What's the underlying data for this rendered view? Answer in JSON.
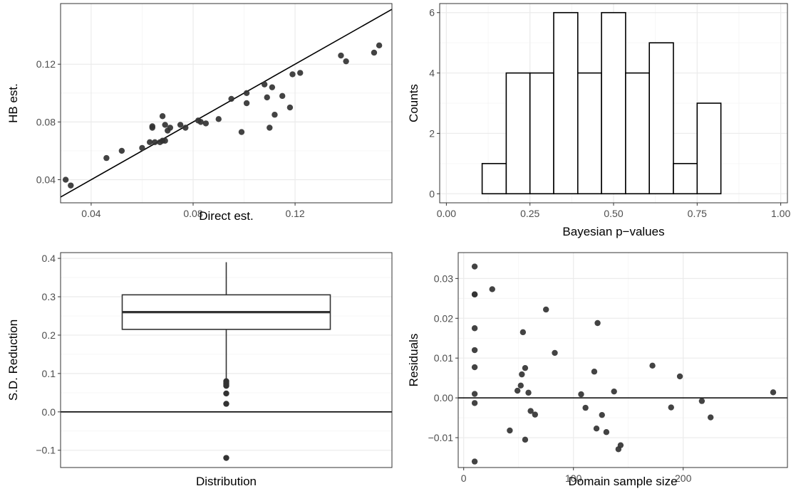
{
  "colors": {
    "point": "#333333",
    "line": "#000000",
    "grid_major": "#ebebeb",
    "grid_minor": "#f4f4f4",
    "frame": "#333333",
    "tick_text": "#4d4d4d"
  },
  "chart_data": [
    {
      "id": "scatter_hb",
      "type": "scatter",
      "xlabel": "Direct est.",
      "ylabel": "HB est.",
      "xlim": [
        0.028,
        0.158
      ],
      "ylim": [
        0.024,
        0.162
      ],
      "xticks": [
        0.04,
        0.08,
        0.12
      ],
      "xtick_labels": [
        "0.04",
        "0.08",
        "0.12"
      ],
      "yticks": [
        0.04,
        0.08,
        0.12
      ],
      "ytick_labels": [
        "0.04",
        "0.08",
        "0.12"
      ],
      "reference_line": "y = x",
      "points": [
        [
          0.03,
          0.04
        ],
        [
          0.032,
          0.036
        ],
        [
          0.046,
          0.055
        ],
        [
          0.052,
          0.06
        ],
        [
          0.06,
          0.062
        ],
        [
          0.063,
          0.066
        ],
        [
          0.064,
          0.076
        ],
        [
          0.064,
          0.077
        ],
        [
          0.065,
          0.066
        ],
        [
          0.067,
          0.066
        ],
        [
          0.068,
          0.067
        ],
        [
          0.068,
          0.084
        ],
        [
          0.069,
          0.067
        ],
        [
          0.069,
          0.078
        ],
        [
          0.07,
          0.074
        ],
        [
          0.071,
          0.076
        ],
        [
          0.075,
          0.078
        ],
        [
          0.077,
          0.076
        ],
        [
          0.082,
          0.081
        ],
        [
          0.083,
          0.08
        ],
        [
          0.085,
          0.079
        ],
        [
          0.09,
          0.082
        ],
        [
          0.095,
          0.096
        ],
        [
          0.099,
          0.073
        ],
        [
          0.101,
          0.1
        ],
        [
          0.101,
          0.093
        ],
        [
          0.108,
          0.106
        ],
        [
          0.109,
          0.097
        ],
        [
          0.11,
          0.076
        ],
        [
          0.111,
          0.104
        ],
        [
          0.112,
          0.085
        ],
        [
          0.115,
          0.098
        ],
        [
          0.118,
          0.09
        ],
        [
          0.119,
          0.113
        ],
        [
          0.122,
          0.114
        ],
        [
          0.138,
          0.126
        ],
        [
          0.14,
          0.122
        ],
        [
          0.151,
          0.128
        ],
        [
          0.153,
          0.133
        ]
      ]
    },
    {
      "id": "histogram_pvalues",
      "type": "bar",
      "xlabel": "Bayesian p−values",
      "ylabel": "Counts",
      "xlim": [
        -0.02,
        1.02
      ],
      "ylim": [
        -0.3,
        6.3
      ],
      "xticks": [
        0.0,
        0.25,
        0.5,
        0.75,
        1.0
      ],
      "xtick_labels": [
        "0.00",
        "0.25",
        "0.50",
        "0.75",
        "1.00"
      ],
      "yticks": [
        0,
        2,
        4,
        6
      ],
      "ytick_labels": [
        "0",
        "2",
        "4",
        "6"
      ],
      "bin_edges": [
        0.036,
        0.107,
        0.179,
        0.25,
        0.321,
        0.393,
        0.464,
        0.536,
        0.607,
        0.679,
        0.75,
        0.821,
        0.893,
        0.964
      ],
      "counts": [
        0,
        1,
        4,
        4,
        6,
        4,
        6,
        4,
        5,
        1,
        3,
        0,
        0
      ]
    },
    {
      "id": "boxplot_sd",
      "type": "box",
      "xlabel": "Distribution",
      "ylabel": "S.D. Reduction",
      "ylim": [
        -0.145,
        0.415
      ],
      "yticks": [
        -0.1,
        0.0,
        0.1,
        0.2,
        0.3,
        0.4
      ],
      "ytick_labels": [
        "−0.1",
        "0.0",
        "0.1",
        "0.2",
        "0.3",
        "0.4"
      ],
      "reference_line": "y = 0",
      "q1": 0.215,
      "median": 0.26,
      "q3": 0.305,
      "whisker_low": 0.085,
      "whisker_high": 0.39,
      "outliers": [
        0.08,
        0.076,
        0.072,
        0.068,
        0.048,
        0.021,
        -0.12
      ]
    },
    {
      "id": "scatter_residuals",
      "type": "scatter",
      "xlabel": "Domain sample size",
      "ylabel": "Residuals",
      "xlim": [
        -5,
        295
      ],
      "ylim": [
        -0.0175,
        0.0365
      ],
      "xticks": [
        0,
        100,
        200
      ],
      "xtick_labels": [
        "0",
        "100",
        "200"
      ],
      "yticks": [
        -0.01,
        0.0,
        0.01,
        0.02,
        0.03
      ],
      "ytick_labels": [
        "−0.01",
        "0.00",
        "0.01",
        "0.02",
        "0.03"
      ],
      "reference_line": "y = 0",
      "points": [
        [
          10,
          0.033
        ],
        [
          10,
          0.026
        ],
        [
          10,
          0.026
        ],
        [
          10,
          0.0175
        ],
        [
          10,
          0.012
        ],
        [
          10,
          0.0077
        ],
        [
          10,
          0.001
        ],
        [
          10,
          -0.0013
        ],
        [
          10,
          -0.016
        ],
        [
          26,
          0.0273
        ],
        [
          42,
          -0.0082
        ],
        [
          49,
          0.0018
        ],
        [
          52,
          0.0031
        ],
        [
          53,
          0.0059
        ],
        [
          54,
          0.0165
        ],
        [
          56,
          0.0075
        ],
        [
          56,
          -0.0105
        ],
        [
          59,
          0.0013
        ],
        [
          61,
          -0.0033
        ],
        [
          65,
          -0.0042
        ],
        [
          75,
          0.0222
        ],
        [
          83,
          0.0113
        ],
        [
          107,
          0.0009
        ],
        [
          111,
          -0.0025
        ],
        [
          119,
          0.0066
        ],
        [
          121,
          -0.0077
        ],
        [
          122,
          0.0188
        ],
        [
          126,
          -0.0043
        ],
        [
          130,
          -0.0086
        ],
        [
          137,
          0.0016
        ],
        [
          141,
          -0.0129
        ],
        [
          143,
          -0.0119
        ],
        [
          172,
          0.0081
        ],
        [
          189,
          -0.0024
        ],
        [
          197,
          0.0054
        ],
        [
          217,
          -0.0008
        ],
        [
          225,
          -0.0049
        ],
        [
          282,
          0.0014
        ]
      ]
    }
  ]
}
